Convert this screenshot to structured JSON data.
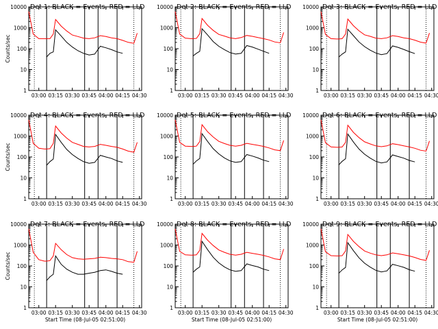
{
  "chart_data": [
    {
      "type": "line",
      "title": "Det 1: BLACK = Events, RED = LLD",
      "xlabel": "",
      "ylabel": "Counts/sec",
      "y_scale": "log",
      "ylim": [
        1,
        10000
      ],
      "x_ticks": [
        "03:00",
        "03:15",
        "03:30",
        "03:45",
        "04:00",
        "04:15",
        "04:30"
      ],
      "y_ticks": [
        "1",
        "10",
        "100",
        "1000",
        "10000"
      ],
      "x": [
        "02:51",
        "02:55",
        "03:00",
        "03:05",
        "03:07",
        "03:10",
        "03:13",
        "03:15",
        "03:20",
        "03:25",
        "03:30",
        "03:35",
        "03:40",
        "03:45",
        "03:50",
        "03:55",
        "04:00",
        "04:05",
        "04:10",
        "04:15",
        "04:20",
        "04:25",
        "04:28"
      ],
      "series": [
        {
          "name": "BLACK = Events",
          "color": "#000000",
          "values": [
            null,
            null,
            null,
            null,
            40,
            60,
            70,
            800,
            400,
            200,
            120,
            80,
            60,
            50,
            55,
            130,
            110,
            90,
            70,
            60,
            null,
            null,
            null
          ]
        },
        {
          "name": "RED = LLD",
          "color": "#ff0000",
          "values": [
            6000,
            500,
            300,
            300,
            300,
            300,
            500,
            2500,
            1200,
            700,
            450,
            380,
            320,
            300,
            330,
            420,
            380,
            330,
            300,
            250,
            200,
            180,
            550
          ]
        }
      ]
    },
    {
      "type": "line",
      "title": "Det 2: BLACK = Events, RED = LLD",
      "xlabel": "",
      "ylabel": "",
      "y_scale": "log",
      "ylim": [
        1,
        10000
      ],
      "x_ticks": [
        "03:00",
        "03:15",
        "03:30",
        "03:45",
        "04:00",
        "04:15",
        "04:30"
      ],
      "y_ticks": [
        "1",
        "10",
        "100",
        "1000",
        "10000"
      ],
      "x": [
        "02:51",
        "02:55",
        "03:00",
        "03:05",
        "03:07",
        "03:10",
        "03:13",
        "03:15",
        "03:20",
        "03:25",
        "03:30",
        "03:35",
        "03:40",
        "03:45",
        "03:50",
        "03:55",
        "04:00",
        "04:05",
        "04:10",
        "04:15",
        "04:20",
        "04:25",
        "04:28"
      ],
      "series": [
        {
          "name": "BLACK = Events",
          "color": "#000000",
          "values": [
            null,
            null,
            null,
            null,
            45,
            60,
            75,
            900,
            450,
            220,
            130,
            90,
            65,
            55,
            60,
            140,
            120,
            95,
            75,
            60,
            null,
            null,
            null
          ]
        },
        {
          "name": "RED = LLD",
          "color": "#ff0000",
          "values": [
            6000,
            500,
            320,
            300,
            300,
            310,
            520,
            2800,
            1300,
            750,
            480,
            400,
            330,
            300,
            340,
            430,
            390,
            340,
            300,
            260,
            210,
            190,
            600
          ]
        }
      ]
    },
    {
      "type": "line",
      "title": "Det 3: BLACK = Events, RED = LLD",
      "xlabel": "",
      "ylabel": "",
      "y_scale": "log",
      "ylim": [
        1,
        10000
      ],
      "x_ticks": [
        "03:00",
        "03:15",
        "03:30",
        "03:45",
        "04:00",
        "04:15",
        "04:30"
      ],
      "y_ticks": [
        "1",
        "10",
        "100",
        "1000",
        "10000"
      ],
      "x": [
        "02:51",
        "02:55",
        "03:00",
        "03:05",
        "03:07",
        "03:10",
        "03:13",
        "03:15",
        "03:20",
        "03:25",
        "03:30",
        "03:35",
        "03:40",
        "03:45",
        "03:50",
        "03:55",
        "04:00",
        "04:05",
        "04:10",
        "04:15",
        "04:20",
        "04:25",
        "04:28"
      ],
      "series": [
        {
          "name": "BLACK = Events",
          "color": "#000000",
          "values": [
            null,
            null,
            null,
            null,
            40,
            55,
            70,
            850,
            420,
            210,
            125,
            85,
            62,
            52,
            58,
            135,
            115,
            92,
            72,
            58,
            null,
            null,
            null
          ]
        },
        {
          "name": "RED = LLD",
          "color": "#ff0000",
          "values": [
            6000,
            480,
            300,
            290,
            290,
            300,
            500,
            2600,
            1250,
            720,
            460,
            390,
            320,
            300,
            330,
            420,
            380,
            330,
            300,
            255,
            205,
            185,
            560
          ]
        }
      ]
    },
    {
      "type": "line",
      "title": "Det 4: BLACK = Events, RED = LLD",
      "xlabel": "",
      "ylabel": "Counts/sec",
      "y_scale": "log",
      "ylim": [
        1,
        10000
      ],
      "x_ticks": [
        "03:00",
        "03:15",
        "03:30",
        "03:45",
        "04:00",
        "04:15",
        "04:30"
      ],
      "y_ticks": [
        "1",
        "10",
        "100",
        "1000",
        "10000"
      ],
      "x": [
        "02:51",
        "02:55",
        "03:00",
        "03:05",
        "03:07",
        "03:10",
        "03:13",
        "03:15",
        "03:20",
        "03:25",
        "03:30",
        "03:35",
        "03:40",
        "03:45",
        "03:50",
        "03:55",
        "04:00",
        "04:05",
        "04:10",
        "04:15",
        "04:20",
        "04:25",
        "04:28"
      ],
      "series": [
        {
          "name": "BLACK = Events",
          "color": "#000000",
          "values": [
            null,
            null,
            null,
            null,
            40,
            60,
            80,
            1200,
            500,
            230,
            130,
            85,
            60,
            50,
            55,
            120,
            100,
            85,
            65,
            55,
            null,
            null,
            null
          ]
        },
        {
          "name": "RED = LLD",
          "color": "#ff0000",
          "values": [
            6000,
            450,
            260,
            240,
            240,
            250,
            450,
            3000,
            1400,
            800,
            500,
            400,
            320,
            300,
            320,
            400,
            360,
            320,
            290,
            240,
            190,
            170,
            500
          ]
        }
      ]
    },
    {
      "type": "line",
      "title": "Det 5: BLACK = Events, RED = LLD",
      "xlabel": "",
      "ylabel": "",
      "y_scale": "log",
      "ylim": [
        1,
        10000
      ],
      "x_ticks": [
        "03:00",
        "03:15",
        "03:30",
        "03:45",
        "04:00",
        "04:15",
        "04:30"
      ],
      "y_ticks": [
        "1",
        "10",
        "100",
        "1000",
        "10000"
      ],
      "x": [
        "02:51",
        "02:55",
        "03:00",
        "03:05",
        "03:07",
        "03:10",
        "03:13",
        "03:15",
        "03:20",
        "03:25",
        "03:30",
        "03:35",
        "03:40",
        "03:45",
        "03:50",
        "03:55",
        "04:00",
        "04:05",
        "04:10",
        "04:15",
        "04:20",
        "04:25",
        "04:28"
      ],
      "series": [
        {
          "name": "BLACK = Events",
          "color": "#000000",
          "values": [
            null,
            null,
            null,
            null,
            45,
            65,
            85,
            1300,
            550,
            250,
            140,
            90,
            65,
            55,
            60,
            130,
            110,
            90,
            70,
            60,
            null,
            null,
            null
          ]
        },
        {
          "name": "RED = LLD",
          "color": "#ff0000",
          "values": [
            6000,
            500,
            330,
            320,
            320,
            330,
            550,
            3500,
            1600,
            900,
            560,
            440,
            360,
            330,
            360,
            450,
            400,
            360,
            320,
            270,
            220,
            200,
            620
          ]
        }
      ]
    },
    {
      "type": "line",
      "title": "Det 6: BLACK = Events, RED = LLD",
      "xlabel": "",
      "ylabel": "",
      "y_scale": "log",
      "ylim": [
        1,
        10000
      ],
      "x_ticks": [
        "03:00",
        "03:15",
        "03:30",
        "03:45",
        "04:00",
        "04:15",
        "04:30"
      ],
      "y_ticks": [
        "1",
        "10",
        "100",
        "1000",
        "10000"
      ],
      "x": [
        "02:51",
        "02:55",
        "03:00",
        "03:05",
        "03:07",
        "03:10",
        "03:13",
        "03:15",
        "03:20",
        "03:25",
        "03:30",
        "03:35",
        "03:40",
        "03:45",
        "03:50",
        "03:55",
        "04:00",
        "04:05",
        "04:10",
        "04:15",
        "04:20",
        "04:25",
        "04:28"
      ],
      "series": [
        {
          "name": "BLACK = Events",
          "color": "#000000",
          "values": [
            null,
            null,
            null,
            null,
            42,
            62,
            82,
            1250,
            520,
            240,
            135,
            88,
            62,
            52,
            58,
            125,
            105,
            88,
            68,
            58,
            null,
            null,
            null
          ]
        },
        {
          "name": "RED = LLD",
          "color": "#ff0000",
          "values": [
            6000,
            480,
            300,
            290,
            290,
            300,
            500,
            3300,
            1500,
            850,
            530,
            420,
            340,
            310,
            340,
            430,
            390,
            340,
            300,
            260,
            210,
            190,
            580
          ]
        }
      ]
    },
    {
      "type": "line",
      "title": "Det 7: BLACK = Events, RED = LLD",
      "xlabel": "Start Time (08-Jul-05 02:51:00)",
      "ylabel": "Counts/sec",
      "y_scale": "log",
      "ylim": [
        1,
        10000
      ],
      "x_ticks": [
        "03:00",
        "03:15",
        "03:30",
        "03:45",
        "04:00",
        "04:15",
        "04:30"
      ],
      "y_ticks": [
        "1",
        "10",
        "100",
        "1000",
        "10000"
      ],
      "x": [
        "02:51",
        "02:55",
        "03:00",
        "03:05",
        "03:07",
        "03:10",
        "03:13",
        "03:15",
        "03:20",
        "03:25",
        "03:30",
        "03:35",
        "03:40",
        "03:45",
        "03:50",
        "03:55",
        "04:00",
        "04:05",
        "04:10",
        "04:15",
        "04:20",
        "04:25",
        "04:28"
      ],
      "series": [
        {
          "name": "BLACK = Events",
          "color": "#000000",
          "values": [
            null,
            null,
            null,
            null,
            20,
            30,
            40,
            300,
            120,
            70,
            50,
            40,
            40,
            45,
            50,
            60,
            65,
            55,
            45,
            40,
            null,
            null,
            null
          ]
        },
        {
          "name": "RED = LLD",
          "color": "#ff0000",
          "values": [
            6000,
            450,
            200,
            170,
            170,
            180,
            300,
            1200,
            600,
            350,
            250,
            220,
            210,
            220,
            230,
            260,
            250,
            230,
            220,
            200,
            160,
            150,
            500
          ]
        }
      ]
    },
    {
      "type": "line",
      "title": "Det 8: BLACK = Events, RED = LLD",
      "xlabel": "Start Time (08-Jul-05 02:51:00)",
      "ylabel": "",
      "y_scale": "log",
      "ylim": [
        1,
        10000
      ],
      "x_ticks": [
        "03:00",
        "03:15",
        "03:30",
        "03:45",
        "04:00",
        "04:15",
        "04:30"
      ],
      "y_ticks": [
        "1",
        "10",
        "100",
        "1000",
        "10000"
      ],
      "x": [
        "02:51",
        "02:55",
        "03:00",
        "03:05",
        "03:07",
        "03:10",
        "03:13",
        "03:15",
        "03:20",
        "03:25",
        "03:30",
        "03:35",
        "03:40",
        "03:45",
        "03:50",
        "03:55",
        "04:00",
        "04:05",
        "04:10",
        "04:15",
        "04:20",
        "04:25",
        "04:28"
      ],
      "series": [
        {
          "name": "BLACK = Events",
          "color": "#000000",
          "values": [
            null,
            null,
            null,
            null,
            50,
            70,
            90,
            1500,
            600,
            260,
            140,
            90,
            65,
            55,
            60,
            125,
            105,
            90,
            70,
            60,
            null,
            null,
            null
          ]
        },
        {
          "name": "RED = LLD",
          "color": "#ff0000",
          "values": [
            6000,
            500,
            340,
            330,
            330,
            340,
            560,
            3600,
            1700,
            950,
            580,
            450,
            360,
            330,
            360,
            450,
            400,
            360,
            320,
            270,
            220,
            200,
            640
          ]
        }
      ]
    },
    {
      "type": "line",
      "title": "Det 9: BLACK = Events, RED = LLD",
      "xlabel": "Start Time (08-Jul-05 02:51:00)",
      "ylabel": "",
      "y_scale": "log",
      "ylim": [
        1,
        10000
      ],
      "x_ticks": [
        "03:00",
        "03:15",
        "03:30",
        "03:45",
        "04:00",
        "04:15",
        "04:30"
      ],
      "y_ticks": [
        "1",
        "10",
        "100",
        "1000",
        "10000"
      ],
      "x": [
        "02:51",
        "02:55",
        "03:00",
        "03:05",
        "03:07",
        "03:10",
        "03:13",
        "03:15",
        "03:20",
        "03:25",
        "03:30",
        "03:35",
        "03:40",
        "03:45",
        "03:50",
        "03:55",
        "04:00",
        "04:05",
        "04:10",
        "04:15",
        "04:20",
        "04:25",
        "04:28"
      ],
      "series": [
        {
          "name": "BLACK = Events",
          "color": "#000000",
          "values": [
            null,
            null,
            null,
            null,
            45,
            65,
            85,
            1300,
            540,
            245,
            135,
            88,
            62,
            52,
            58,
            120,
            102,
            86,
            66,
            56,
            null,
            null,
            null
          ]
        },
        {
          "name": "RED = LLD",
          "color": "#ff0000",
          "values": [
            6000,
            480,
            310,
            300,
            300,
            310,
            520,
            3200,
            1500,
            850,
            520,
            410,
            340,
            310,
            340,
            420,
            380,
            340,
            300,
            255,
            205,
            185,
            560
          ]
        }
      ]
    }
  ]
}
